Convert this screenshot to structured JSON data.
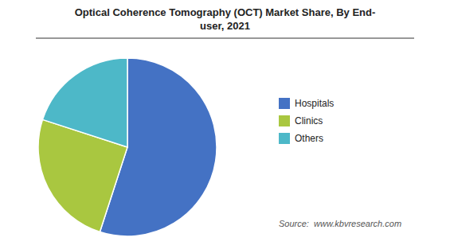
{
  "chart_data": {
    "type": "pie",
    "title": "Optical Coherence Tomography (OCT) Market Share, By End-\nuser, 2021",
    "categories": [
      "Hospitals",
      "Clinics",
      "Others"
    ],
    "values": [
      55,
      25,
      20
    ],
    "colors": [
      "#4472c4",
      "#a9c740",
      "#4db8c8"
    ],
    "legend": "right",
    "annotations": [
      "Source:  www.kbvresearch.com"
    ]
  }
}
